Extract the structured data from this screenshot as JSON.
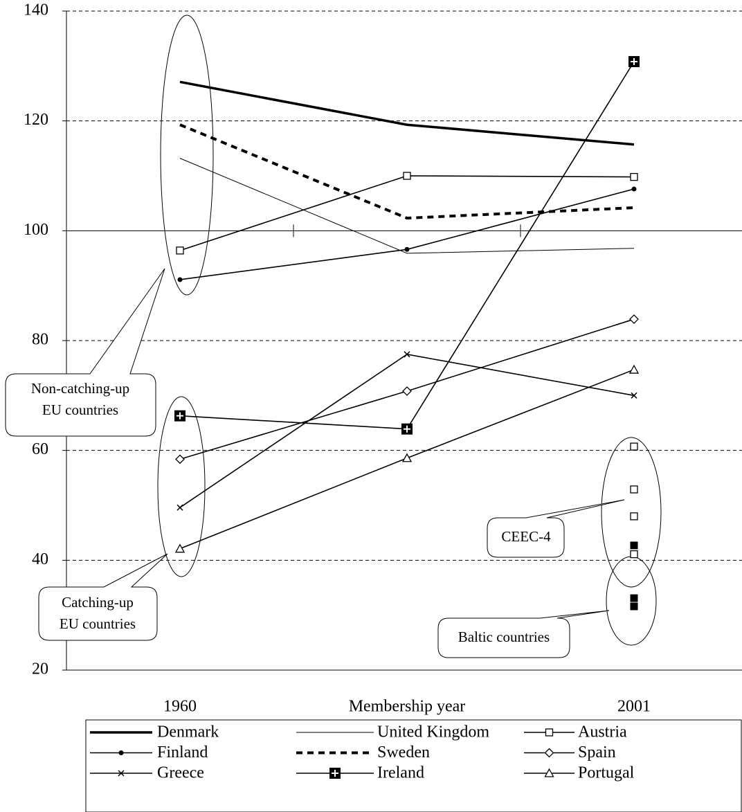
{
  "chart_data": {
    "type": "line",
    "categories": [
      "1960",
      "Membership year",
      "2001"
    ],
    "ylim": [
      20,
      140
    ],
    "yticks": [
      20,
      40,
      60,
      80,
      100,
      120,
      140
    ],
    "grid": true,
    "reference_line": 100,
    "series": [
      {
        "name": "Denmark",
        "color": "#000000",
        "style": "thick",
        "marker": "none",
        "values": [
          127.1,
          119.3,
          115.7
        ]
      },
      {
        "name": "United Kingdom",
        "color": "#000000",
        "style": "thin",
        "marker": "none",
        "values": [
          113.2,
          95.9,
          96.8
        ]
      },
      {
        "name": "Austria",
        "color": "#000000",
        "style": "solid",
        "marker": "open-square",
        "values": [
          96.4,
          110.0,
          109.8
        ]
      },
      {
        "name": "Finland",
        "color": "#000000",
        "style": "solid",
        "marker": "dot",
        "values": [
          91.1,
          96.6,
          107.6
        ]
      },
      {
        "name": "Sweden",
        "color": "#000000",
        "style": "dashed",
        "marker": "none",
        "values": [
          119.3,
          102.3,
          104.2
        ]
      },
      {
        "name": "Spain",
        "color": "#000000",
        "style": "solid",
        "marker": "diamond",
        "values": [
          58.4,
          70.8,
          83.9
        ]
      },
      {
        "name": "Greece",
        "color": "#000000",
        "style": "solid",
        "marker": "cross",
        "values": [
          49.6,
          77.5,
          70.0
        ]
      },
      {
        "name": "Ireland",
        "color": "#000000",
        "style": "solid",
        "marker": "plus-square",
        "values": [
          66.3,
          63.9,
          130.8
        ]
      },
      {
        "name": "Portugal",
        "color": "#000000",
        "style": "solid",
        "marker": "triangle",
        "values": [
          42.1,
          58.6,
          74.7
        ]
      }
    ],
    "point_groups": [
      {
        "marker": "open-square",
        "values": [
          60.7,
          52.9,
          48.0,
          41.1
        ]
      },
      {
        "marker": "filled-square",
        "values": [
          42.7,
          33.1,
          31.6
        ]
      }
    ],
    "annotations": [
      {
        "lines": [
          "Non-catching-up",
          "EU countries"
        ]
      },
      {
        "lines": [
          "Catching-up",
          "EU countries"
        ]
      },
      {
        "lines": [
          "CEEC-4"
        ]
      },
      {
        "lines": [
          "Baltic countries"
        ]
      }
    ]
  }
}
